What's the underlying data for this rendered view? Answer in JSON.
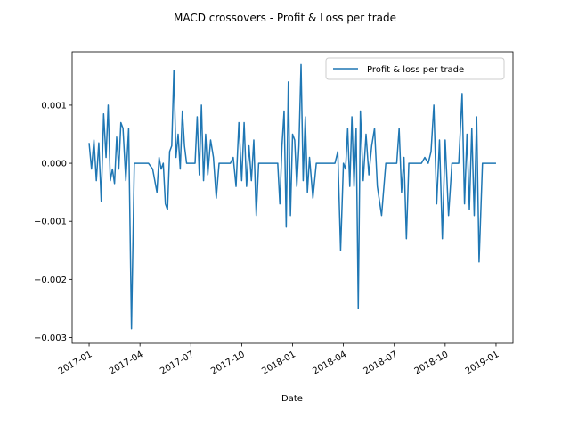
{
  "chart_data": {
    "type": "line",
    "title": "MACD crossovers - Profit & Loss per trade",
    "xlabel": "Date",
    "legend": "upper right",
    "x": [
      "2017-01",
      "2017-01",
      "2017-01",
      "2017-01",
      "2017-01",
      "2017-01",
      "2017-01",
      "2017-02",
      "2017-02",
      "2017-02",
      "2017-02",
      "2017-02",
      "2017-02",
      "2017-02",
      "2017-02",
      "2017-03",
      "2017-03",
      "2017-03",
      "2017-03",
      "2017-03",
      "2017-03",
      "2017-04",
      "2017-04",
      "2017-04",
      "2017-04",
      "2017-05",
      "2017-05",
      "2017-05",
      "2017-05",
      "2017-05",
      "2017-05",
      "2017-05",
      "2017-05",
      "2017-06",
      "2017-06",
      "2017-06",
      "2017-06",
      "2017-06",
      "2017-06",
      "2017-06",
      "2017-06",
      "2017-07",
      "2017-07",
      "2017-07",
      "2017-07",
      "2017-07",
      "2017-07",
      "2017-07",
      "2017-07",
      "2017-08",
      "2017-08",
      "2017-08",
      "2017-08",
      "2017-08",
      "2017-08",
      "2017-09",
      "2017-09",
      "2017-09",
      "2017-09",
      "2017-09",
      "2017-09",
      "2017-10",
      "2017-10",
      "2017-10",
      "2017-10",
      "2017-10",
      "2017-10",
      "2017-10",
      "2017-11",
      "2017-11",
      "2017-11",
      "2017-11",
      "2017-11",
      "2017-12",
      "2017-12",
      "2017-12",
      "2017-12",
      "2017-12",
      "2017-12",
      "2017-12",
      "2017-12",
      "2018-01",
      "2018-01",
      "2018-01",
      "2018-01",
      "2018-01",
      "2018-01",
      "2018-01",
      "2018-01",
      "2018-02",
      "2018-02",
      "2018-02",
      "2018-02",
      "2018-02",
      "2018-03",
      "2018-03",
      "2018-03",
      "2018-03",
      "2018-03",
      "2018-03",
      "2018-04",
      "2018-04",
      "2018-04",
      "2018-04",
      "2018-04",
      "2018-04",
      "2018-04",
      "2018-04",
      "2018-05",
      "2018-05",
      "2018-05",
      "2018-05",
      "2018-05",
      "2018-05",
      "2018-06",
      "2018-06",
      "2018-06",
      "2018-06",
      "2018-07",
      "2018-07",
      "2018-07",
      "2018-07",
      "2018-07",
      "2018-07",
      "2018-07",
      "2018-08",
      "2018-08",
      "2018-08",
      "2018-08",
      "2018-08",
      "2018-09",
      "2018-09",
      "2018-09",
      "2018-09",
      "2018-09",
      "2018-09",
      "2018-10",
      "2018-10",
      "2018-10",
      "2018-10",
      "2018-10",
      "2018-11",
      "2018-11",
      "2018-11",
      "2018-11",
      "2018-11",
      "2018-11",
      "2018-11",
      "2018-12",
      "2018-12",
      "2018-12",
      "2018-12",
      "2018-12",
      "2019-01"
    ],
    "series": [
      {
        "name": "Profit & loss per trade",
        "color": "#1f77b4",
        "values": [
          0.00035,
          -0.0001,
          0.0004,
          -0.0003,
          0.00035,
          -0.00065,
          0.00085,
          0.0001,
          0.001,
          -0.0003,
          -0.0001,
          -0.00035,
          0.00045,
          -0.0001,
          0.0007,
          0.0006,
          -0.0003,
          0.0006,
          -0.00285,
          0,
          0,
          0,
          0,
          0,
          -0.0001,
          -0.0005,
          0.0001,
          -0.0001,
          0,
          -0.0007,
          -0.0008,
          0.0002,
          0.0003,
          0.0016,
          0.0001,
          0.0005,
          -0.0001,
          0.0009,
          0.0003,
          0,
          0,
          0,
          0,
          0,
          0.0008,
          -0.0002,
          0.001,
          -0.0003,
          0.0005,
          -0.0002,
          0.0004,
          0.0001,
          -0.0006,
          0,
          0,
          0,
          0,
          0,
          0.0001,
          -0.0004,
          0.0007,
          -0.0003,
          0.0007,
          -0.0004,
          0.0003,
          -0.0003,
          0.0004,
          -0.0009,
          0,
          0,
          0,
          0,
          0,
          0,
          0,
          -0.0007,
          0.0003,
          0.0009,
          -0.0011,
          0.0014,
          -0.0009,
          0.0005,
          0.0004,
          -0.0004,
          0.0003,
          0.0017,
          -0.0003,
          0.0008,
          -0.0005,
          0.0001,
          -0.0006,
          0,
          0,
          0,
          0,
          0,
          0,
          0,
          0.0002,
          -0.0015,
          0,
          -0.0001,
          0.0006,
          -0.0004,
          0.0008,
          -0.0004,
          0.0006,
          -0.0025,
          0.0009,
          -0.0003,
          0.0005,
          -0.0002,
          0.0003,
          0.0006,
          -0.0004,
          -0.0009,
          0,
          0,
          0,
          0,
          0.0006,
          -0.0005,
          0.0001,
          -0.0013,
          0,
          0,
          0,
          0,
          0,
          0.0001,
          0,
          0.0002,
          0.001,
          -0.0007,
          0.0004,
          -0.0013,
          0.0004,
          -0.0009,
          0,
          0,
          0,
          0.0012,
          -0.0007,
          0.0005,
          -0.0008,
          0.0006,
          -0.0009,
          0.0008,
          -0.0017,
          0,
          0,
          0,
          0,
          0
        ]
      }
    ],
    "xlim": [
      "2016-12",
      "2019-02"
    ],
    "xticks": [
      "2017-01",
      "2017-04",
      "2017-07",
      "2017-10",
      "2018-01",
      "2018-04",
      "2018-07",
      "2018-10",
      "2019-01"
    ],
    "ylim": [
      -0.0031,
      0.00192
    ],
    "yticks": [
      {
        "value": -0.003,
        "label": "−0.003"
      },
      {
        "value": -0.002,
        "label": "−0.002"
      },
      {
        "value": -0.001,
        "label": "−0.001"
      },
      {
        "value": 0,
        "label": "0.000"
      },
      0.001
    ]
  }
}
